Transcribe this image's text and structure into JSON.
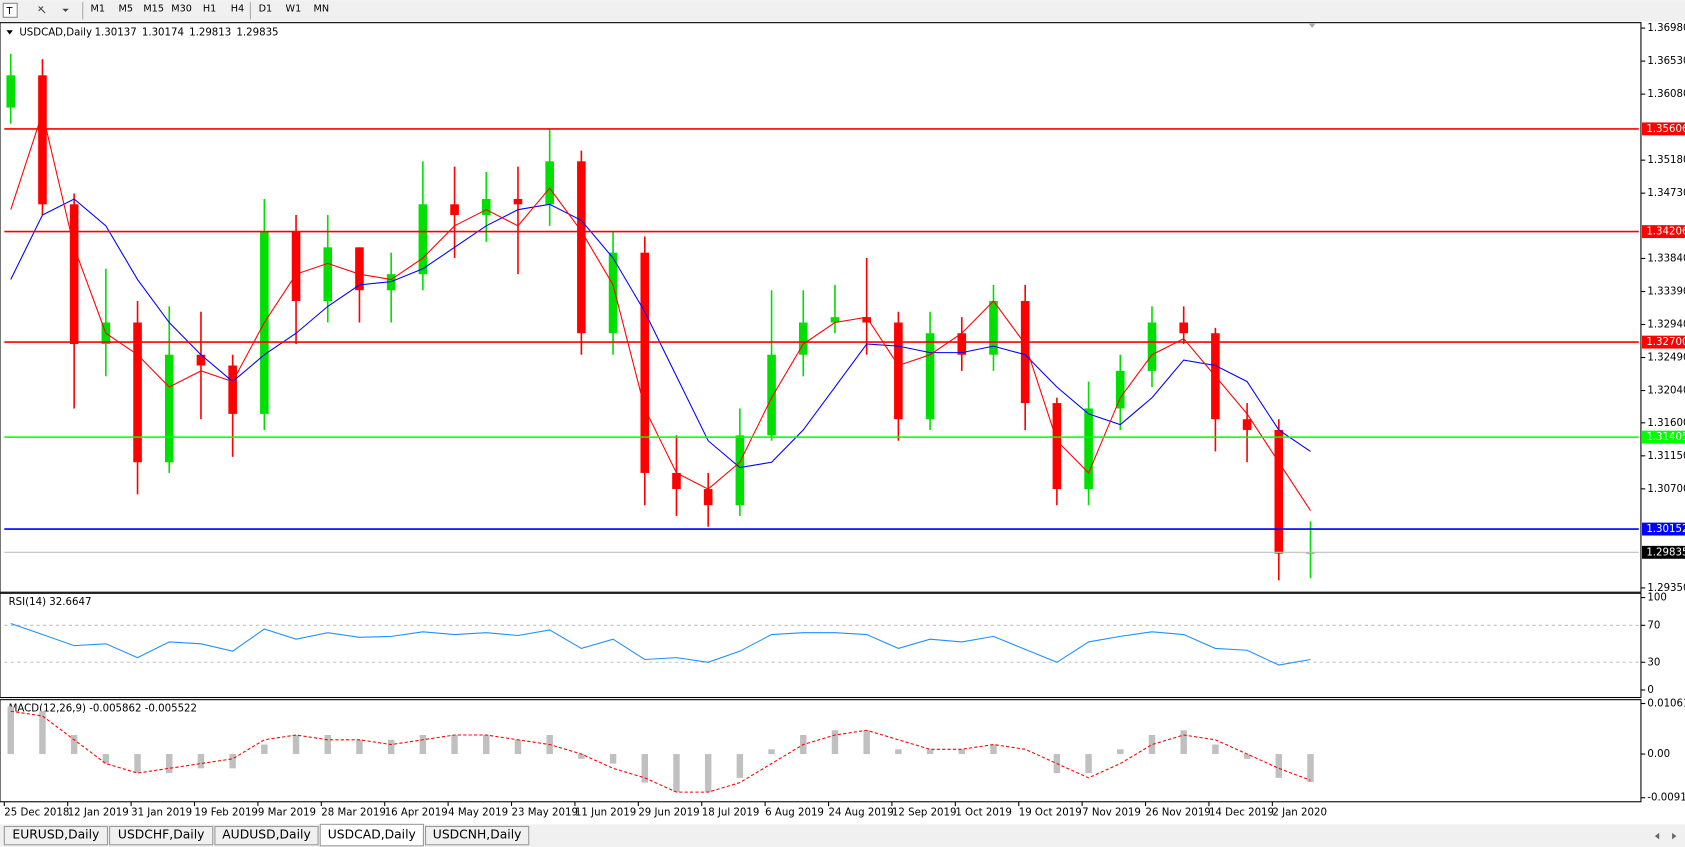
{
  "toolbar": {
    "timeframes": [
      "M1",
      "M5",
      "M15",
      "M30",
      "H1",
      "H4",
      "D1",
      "W1",
      "MN"
    ]
  },
  "tabs": [
    "EURUSD,Daily",
    "USDCHF,Daily",
    "AUDUSD,Daily",
    "USDCAD,Daily",
    "USDCNH,Daily"
  ],
  "active_tab": 3,
  "chart_data": [
    {
      "type": "candlestick",
      "title": "USDCAD,Daily",
      "quote": [
        1.30137,
        1.30174,
        1.29813,
        1.29835
      ],
      "categories": [
        "25 Dec 2018",
        null,
        "12 Jan 2019",
        null,
        "31 Jan 2019",
        null,
        "19 Feb 2019",
        null,
        "9 Mar 2019",
        null,
        "28 Mar 2019",
        null,
        "16 Apr 2019",
        null,
        "4 May 2019",
        null,
        "23 May 2019",
        null,
        "11 Jun 2019",
        null,
        "29 Jun 2019",
        null,
        "18 Jul 2019",
        null,
        "6 Aug 2019",
        null,
        "24 Aug 2019",
        null,
        "12 Sep 2019",
        null,
        "1 Oct 2019",
        null,
        "19 Oct 2019",
        null,
        "7 Nov 2019",
        null,
        "26 Nov 2019",
        null,
        "14 Dec 2019",
        null,
        "2 Jan 2020",
        null
      ],
      "open": [
        1.35896,
        1.36336,
        1.34578,
        1.32674,
        1.32967,
        1.31063,
        1.32528,
        1.32381,
        1.31722,
        1.34212,
        1.3326,
        1.33992,
        1.33407,
        1.33626,
        1.34578,
        1.34432,
        1.34651,
        1.34578,
        1.35164,
        1.32821,
        1.33919,
        1.30917,
        1.30697,
        1.30477,
        1.31429,
        1.32528,
        1.32967,
        1.3304,
        1.32967,
        1.31649,
        1.32821,
        1.32528,
        1.3326,
        1.31869,
        1.30697,
        1.31796,
        1.32308,
        1.32967,
        1.32821,
        1.31649,
        1.31503,
        1.29818
      ],
      "high": [
        1.36629,
        1.36555,
        1.34725,
        1.33699,
        1.3326,
        1.33187,
        1.33114,
        1.32528,
        1.34651,
        1.34432,
        1.34432,
        1.33992,
        1.33919,
        1.35164,
        1.35091,
        1.35018,
        1.35091,
        1.35603,
        1.3531,
        1.34212,
        1.34139,
        1.31429,
        1.30917,
        1.31796,
        1.33407,
        1.33407,
        1.3348,
        1.33846,
        1.33114,
        1.33114,
        1.3304,
        1.3348,
        1.3348,
        1.31942,
        1.32162,
        1.32528,
        1.33187,
        1.33187,
        1.32894,
        1.31869,
        1.31649,
        1.30258
      ],
      "low": [
        1.35677,
        1.34432,
        1.31796,
        1.32235,
        1.30624,
        1.30917,
        1.31649,
        1.31136,
        1.31503,
        1.32674,
        1.32967,
        1.32967,
        1.32967,
        1.33407,
        1.33846,
        1.34066,
        1.33626,
        1.34285,
        1.32528,
        1.32528,
        1.30477,
        1.30331,
        1.30184,
        1.30331,
        1.31356,
        1.32235,
        1.32821,
        1.32528,
        1.31356,
        1.31503,
        1.32308,
        1.32308,
        1.31503,
        1.30477,
        1.30477,
        1.31503,
        1.32088,
        1.32674,
        1.3121,
        1.31063,
        1.29452,
        1.29482
      ],
      "close": [
        1.36336,
        1.34578,
        1.32674,
        1.32967,
        1.31063,
        1.32528,
        1.32381,
        1.31722,
        1.34212,
        1.3326,
        1.33992,
        1.33407,
        1.33626,
        1.34578,
        1.34432,
        1.34651,
        1.34578,
        1.35164,
        1.32821,
        1.33919,
        1.30917,
        1.30697,
        1.30477,
        1.31429,
        1.32528,
        1.32967,
        1.3304,
        1.32967,
        1.31649,
        1.32821,
        1.32528,
        1.3326,
        1.31869,
        1.30697,
        1.31796,
        1.32308,
        1.32967,
        1.32821,
        1.31649,
        1.31503,
        1.29818,
        1.29835
      ],
      "up_color": "#00e000",
      "down_color": "#ff0000",
      "series": [
        {
          "color": "#0000ff",
          "values": [
            1.33553,
            1.34432,
            1.34651,
            1.34285,
            1.33553,
            1.32967,
            1.32528,
            1.32162,
            1.32528,
            1.32821,
            1.33187,
            1.3348,
            1.33524,
            1.33699,
            1.33992,
            1.34285,
            1.34505,
            1.34578,
            1.34358,
            1.33846,
            1.33114,
            1.32235,
            1.31356,
            1.3099,
            1.31063,
            1.31503,
            1.32088,
            1.32674,
            1.32645,
            1.32557,
            1.32557,
            1.32645,
            1.32528,
            1.32088,
            1.31722,
            1.31576,
            1.31942,
            1.32455,
            1.32381,
            1.32162,
            1.31503,
            1.3121
          ]
        },
        {
          "color": "#ff0000",
          "values": [
            1.34505,
            1.35823,
            1.33992,
            1.32821,
            1.32528,
            1.32088,
            1.32308,
            1.32162,
            1.32967,
            1.33626,
            1.33773,
            1.33626,
            1.33553,
            1.33846,
            1.34285,
            1.34505,
            1.34285,
            1.34798,
            1.34212,
            1.3348,
            1.31796,
            1.30917,
            1.30697,
            1.31063,
            1.31942,
            1.32674,
            1.32967,
            1.3304,
            1.32381,
            1.32528,
            1.32821,
            1.3326,
            1.32674,
            1.31356,
            1.30917,
            1.31942,
            1.32528,
            1.32747,
            1.32235,
            1.31722,
            1.31063,
            1.30404
          ]
        }
      ],
      "levels": [
        {
          "value": 1.35606,
          "label": "1.35606",
          "color": "#ff0000",
          "label_background": "#ff0000"
        },
        {
          "value": 1.34206,
          "label": "1.34206",
          "color": "#ff0000",
          "label_background": "#ff0000"
        },
        {
          "value": 1.327,
          "label": "1.32700",
          "color": "#ff0000",
          "label_background": "#ff0000"
        },
        {
          "value": 1.31405,
          "label": "1.31405",
          "color": "#00ff00",
          "label_background": "#00ff00"
        },
        {
          "value": 1.30152,
          "label": "1.30152",
          "color": "#0000ff",
          "label_background": "#0000ff"
        },
        {
          "value": 1.29835,
          "label": "1.29835",
          "color": "#c0c0c0",
          "label_background": "#000000"
        }
      ],
      "ylim": [
        1.29306,
        1.37039
      ],
      "yticks": [
        {
          "value": 1.3698,
          "label": "1.36980"
        },
        {
          "value": 1.3653,
          "label": "1.36530"
        },
        {
          "value": 1.3608,
          "label": "1.36080"
        },
        {
          "value": 1.3518,
          "label": "1.35180"
        },
        {
          "value": 1.3473,
          "label": "1.34730"
        },
        {
          "value": 1.3384,
          "label": "1.33840"
        },
        {
          "value": 1.3339,
          "label": "1.33390"
        },
        {
          "value": 1.3294,
          "label": "1.32940"
        },
        {
          "value": 1.3249,
          "label": "1.32490"
        },
        {
          "value": 1.3204,
          "label": "1.32040"
        },
        {
          "value": 1.316,
          "label": "1.31600"
        },
        {
          "value": 1.3115,
          "label": "1.31150"
        },
        {
          "value": 1.307,
          "label": "1.30700"
        },
        {
          "value": 1.2935,
          "label": "1.29350"
        }
      ]
    },
    {
      "type": "line",
      "title": "RSI(14) 32.6647",
      "series": [
        {
          "color": "#1e90ff",
          "values": [
            72,
            60,
            48,
            50,
            35,
            52,
            50,
            42,
            66,
            55,
            62,
            57,
            58,
            63,
            60,
            62,
            59,
            65,
            45,
            55,
            33,
            35,
            30,
            42,
            60,
            62,
            62,
            60,
            45,
            55,
            52,
            58,
            44,
            30,
            52,
            58,
            63,
            60,
            45,
            43,
            27,
            33
          ]
        }
      ],
      "levels": [
        70,
        30
      ],
      "ylim": [
        -7,
        103.5
      ],
      "yticks": [
        100,
        70,
        30,
        0
      ]
    },
    {
      "type": "macd",
      "title": "MACD(12,26,9) -0.005862 -0.005522",
      "histogram": {
        "color": "#c0c0c0",
        "values": [
          0.01,
          0.009,
          0.004,
          -0.002,
          -0.004,
          -0.004,
          -0.003,
          -0.003,
          0.002,
          0.004,
          0.004,
          0.003,
          0.003,
          0.004,
          0.004,
          0.004,
          0.003,
          0.004,
          -0.001,
          -0.002,
          -0.006,
          -0.008,
          -0.008,
          -0.005,
          0.001,
          0.004,
          0.005,
          0.005,
          0.001,
          0.001,
          0.001,
          0.002,
          0.0,
          -0.004,
          -0.004,
          0.001,
          0.004,
          0.005,
          0.002,
          -0.001,
          -0.005,
          -0.0059
        ]
      },
      "signal": {
        "color": "#ff0000",
        "values": [
          0.009,
          0.008,
          0.003,
          -0.002,
          -0.004,
          -0.003,
          -0.002,
          -0.001,
          0.003,
          0.004,
          0.003,
          0.003,
          0.002,
          0.003,
          0.004,
          0.004,
          0.003,
          0.002,
          0.0,
          -0.003,
          -0.005,
          -0.008,
          -0.008,
          -0.006,
          -0.002,
          0.002,
          0.004,
          0.005,
          0.003,
          0.001,
          0.001,
          0.002,
          0.001,
          -0.002,
          -0.005,
          -0.002,
          0.002,
          0.004,
          0.003,
          0.0,
          -0.003,
          -0.0055
        ]
      },
      "ylim": [
        -0.0098,
        0.0112
      ],
      "yticks": [
        0.010615,
        {
          "value": 0,
          "label": "0.00"
        },
        -0.009181
      ]
    }
  ]
}
